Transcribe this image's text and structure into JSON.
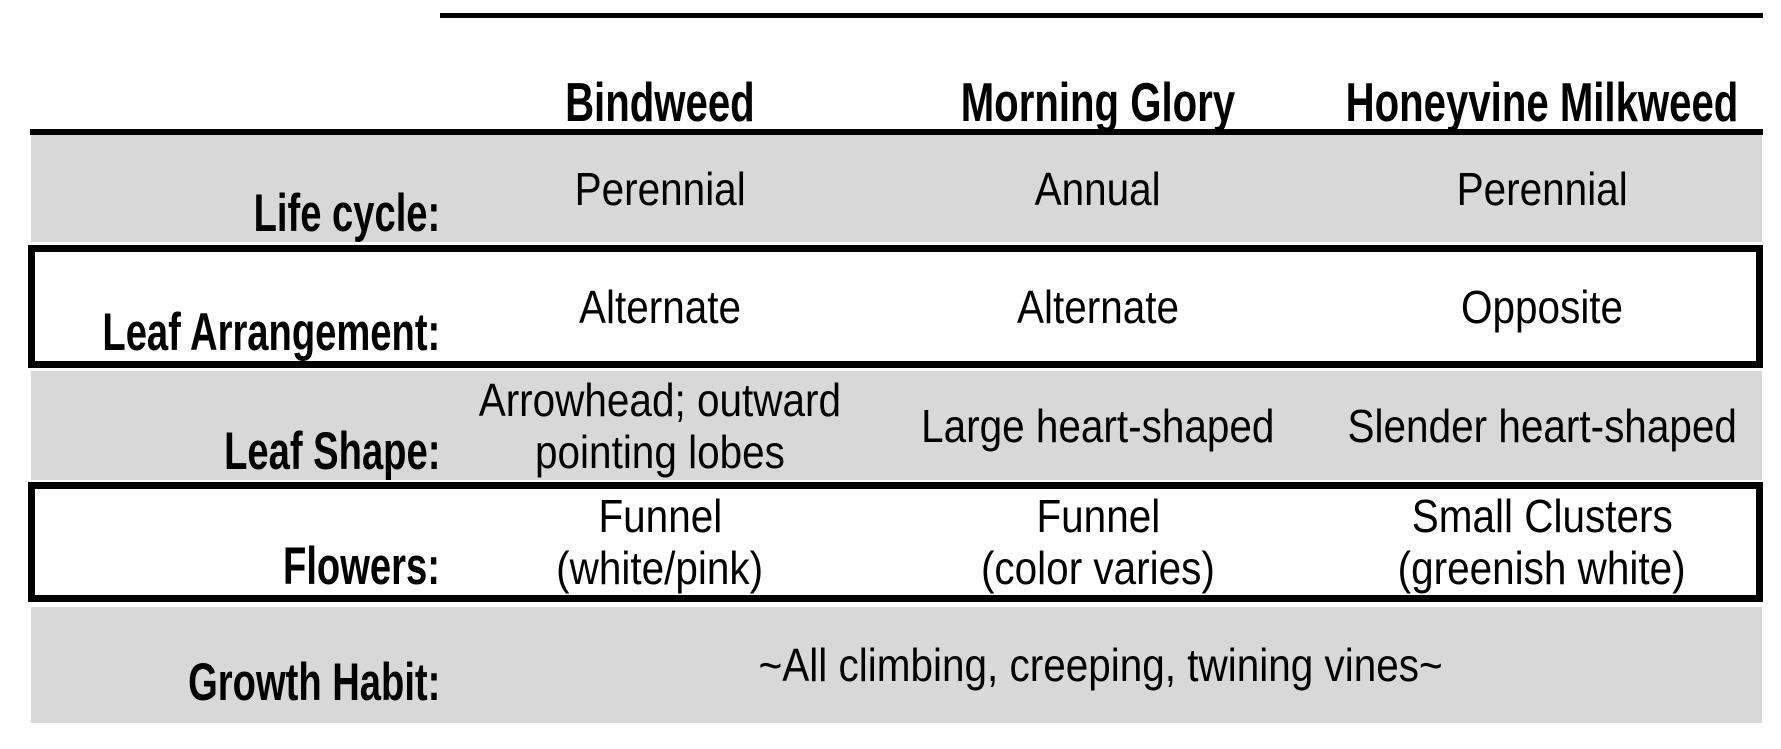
{
  "table": {
    "columns": [
      {
        "label": "Bindweed"
      },
      {
        "label": "Morning Glory"
      },
      {
        "label": "Honeyvine Milkweed"
      }
    ],
    "rows": [
      {
        "label": "Life cycle:",
        "values": [
          "Perennial",
          "Annual",
          "Perennial"
        ]
      },
      {
        "label": "Leaf Arrangement:",
        "values": [
          "Alternate",
          "Alternate",
          "Opposite"
        ]
      },
      {
        "label": "Leaf Shape:",
        "values": [
          [
            "Arrowhead; outward",
            "pointing lobes"
          ],
          [
            "Large heart-shaped"
          ],
          [
            "Slender heart-shaped"
          ]
        ]
      },
      {
        "label": "Flowers:",
        "values": [
          [
            "Funnel",
            "(white/pink)"
          ],
          [
            "Funnel",
            "(color varies)"
          ],
          [
            "Small Clusters",
            "(greenish white)"
          ]
        ]
      },
      {
        "label": "Growth Habit:",
        "merged_value": "~All climbing, creeping, twining vines~"
      }
    ],
    "colors": {
      "row_shade": "#d8d8d8",
      "rule": "#000000",
      "box_border": "#000000",
      "box_fill": "#ffffff",
      "text": "#000000",
      "background": "#ffffff"
    }
  },
  "chart_data": {
    "type": "table",
    "title": "",
    "columns": [
      "",
      "Bindweed",
      "Morning Glory",
      "Honeyvine Milkweed"
    ],
    "rows": [
      [
        "Life cycle:",
        "Perennial",
        "Annual",
        "Perennial"
      ],
      [
        "Leaf Arrangement:",
        "Alternate",
        "Alternate",
        "Opposite"
      ],
      [
        "Leaf Shape:",
        "Arrowhead; outward pointing lobes",
        "Large heart-shaped",
        "Slender heart-shaped"
      ],
      [
        "Flowers:",
        "Funnel (white/pink)",
        "Funnel (color varies)",
        "Small Clusters (greenish white)"
      ],
      [
        "Growth Habit:",
        "~All climbing, creeping, twining vines~",
        "~All climbing, creeping, twining vines~",
        "~All climbing, creeping, twining vines~"
      ]
    ]
  }
}
